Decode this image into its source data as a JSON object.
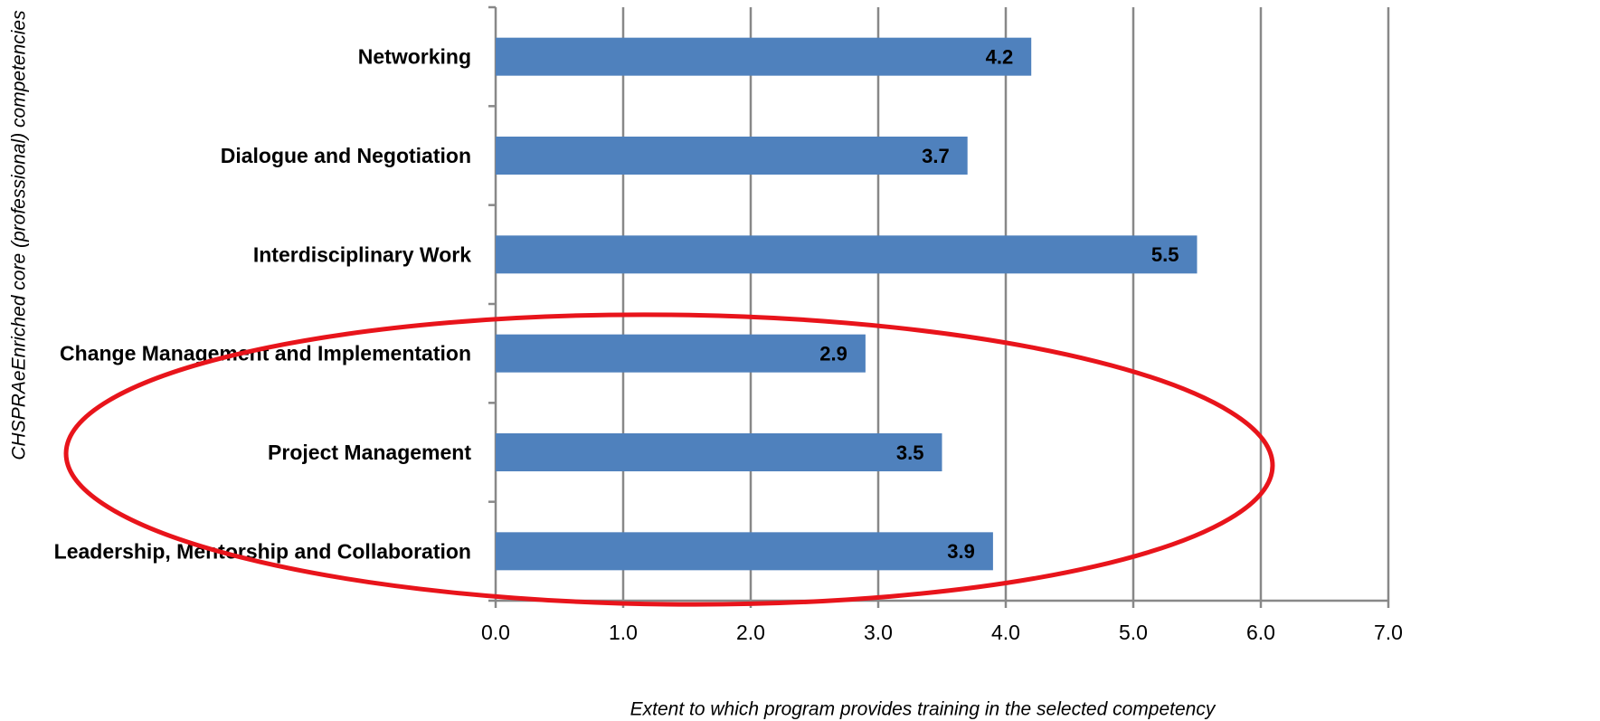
{
  "chart_data": {
    "type": "hbar",
    "categories": [
      "Networking",
      "Dialogue and Negotiation",
      "Interdisciplinary Work",
      "Change Management and Implementation",
      "Project Management",
      "Leadership, Mentorship and Collaboration"
    ],
    "values": [
      4.2,
      3.7,
      5.5,
      2.9,
      3.5,
      3.9
    ],
    "color": "#4f81bd",
    "xlim": [
      0,
      7
    ],
    "xticks": [
      {
        "value": 0,
        "label": "0.0"
      },
      {
        "value": 1,
        "label": "1.0"
      },
      {
        "value": 2,
        "label": "2.0"
      },
      {
        "value": 3,
        "label": "3.0"
      },
      {
        "value": 4,
        "label": "4.0"
      },
      {
        "value": 5,
        "label": "5.0"
      },
      {
        "value": 6,
        "label": "6.0"
      },
      {
        "value": 7,
        "label": "7.0"
      }
    ],
    "grid": true,
    "xlabel": "Extent to which program provides training in the selected competency",
    "ylabel": "CHSPRAeEnriched core (professional) competencies"
  }
}
